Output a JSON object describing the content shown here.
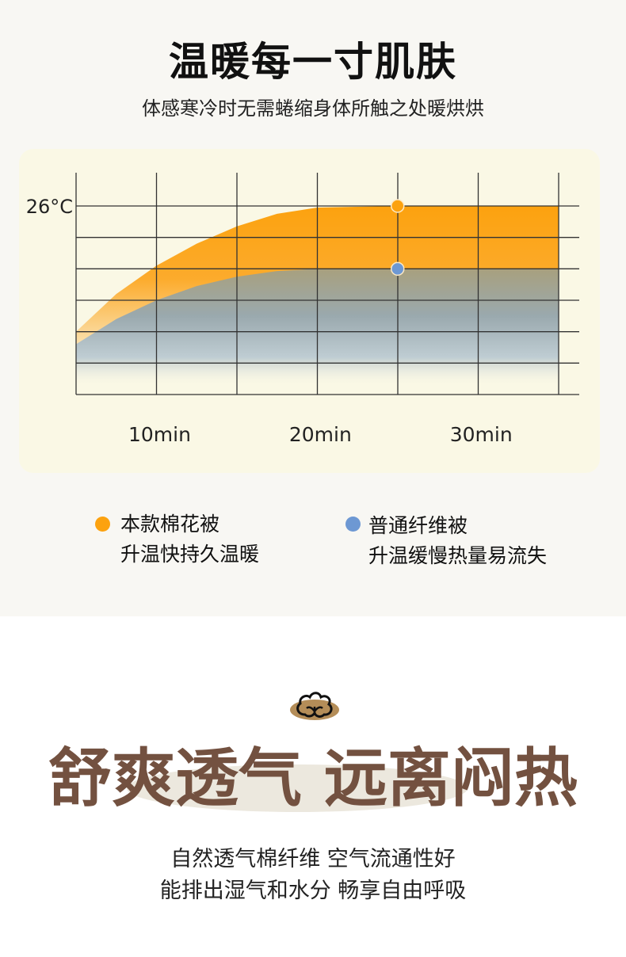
{
  "section1": {
    "title": "温暖每一寸肌肤",
    "subtitle": "体感寒冷时无需蜷缩身体所触之处暖烘烘",
    "legend": [
      {
        "name": "本款棉花被",
        "desc": "升温快持久温暖",
        "color": "#fca20f"
      },
      {
        "name": "普通纤维被",
        "desc": "升温缓慢热量易流失",
        "color": "#6d98d3"
      }
    ]
  },
  "chart_data": {
    "type": "area",
    "title": "",
    "xlabel": "",
    "ylabel": "",
    "x_tick_labels": [
      {
        "value": 10,
        "label": "10min"
      },
      {
        "value": 20,
        "label": "20min"
      },
      {
        "value": 30,
        "label": "30min"
      }
    ],
    "y_tick_labels": [
      {
        "value": 6,
        "label": "26°C"
      }
    ],
    "xlim": [
      5,
      36.3
    ],
    "ylim": [
      0,
      6
    ],
    "grid": true,
    "legend_position": "bottom",
    "series": [
      {
        "name": "本款棉花被",
        "color": "#fca20f",
        "points": [
          [
            5,
            2.0
          ],
          [
            7.5,
            3.2
          ],
          [
            10,
            4.1
          ],
          [
            12.5,
            4.8
          ],
          [
            15,
            5.35
          ],
          [
            17.5,
            5.75
          ],
          [
            20,
            5.95
          ],
          [
            25,
            6.0
          ],
          [
            35,
            6.0
          ]
        ],
        "marker_x": 25
      },
      {
        "name": "普通纤维被",
        "color": "#6d98d3",
        "points": [
          [
            5,
            1.6
          ],
          [
            7.5,
            2.4
          ],
          [
            10,
            3.0
          ],
          [
            12.5,
            3.45
          ],
          [
            15,
            3.75
          ],
          [
            17.5,
            3.93
          ],
          [
            20,
            4.0
          ],
          [
            25,
            4.0
          ],
          [
            35,
            4.0
          ]
        ],
        "marker_x": 25
      }
    ]
  },
  "section2": {
    "icon": "cotton-icon",
    "title": "舒爽透气 远离闷热",
    "lines": [
      "自然透气棉纤维 空气流通性好",
      "能排出湿气和水分 畅享自由呼吸"
    ]
  }
}
